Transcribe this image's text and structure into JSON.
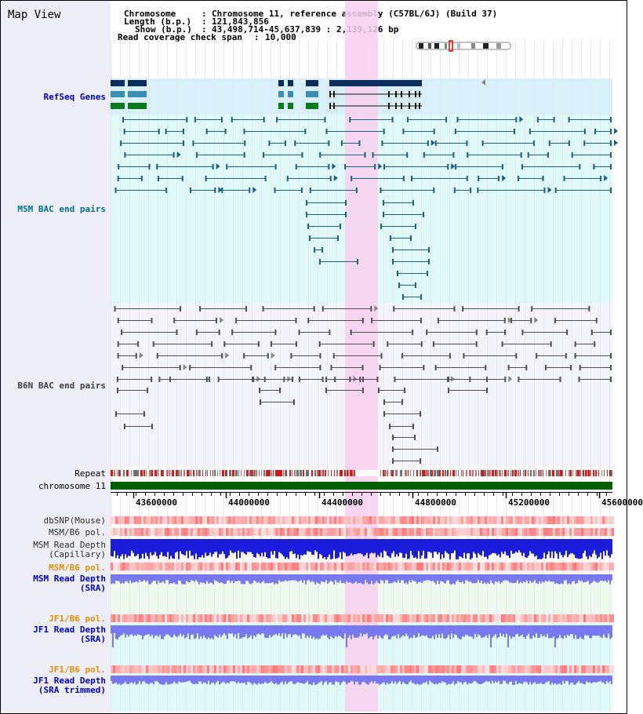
{
  "title": "Map View",
  "info": {
    "chromosome_key": "Chromosome",
    "chromosome_val": "Chromosome 11, reference assembly (C57BL/6J) (Build 37)",
    "length_key": "Length (b.p.)",
    "length_val": "121,843,856",
    "show_key": "Show (b.p.)",
    "show_val": "43,498,714-45,637,839 : 2,139,126 bp",
    "coverage_key": "Read coverage check span",
    "coverage_val": "10,000"
  },
  "tracks": {
    "refseq": "RefSeq Genes",
    "msm_bac": "MSM BAC end pairs",
    "b6n_bac": "B6N BAC end pairs",
    "repeat": "Repeat",
    "chromosome": "chromosome 11",
    "dbsnp": "dbSNP(Mouse)",
    "msm_b6_pol": "MSM/B6 pol.",
    "msm_read_depth_cap_1": "MSM Read Depth",
    "msm_read_depth_cap_2": "(Capillary)",
    "msm_b6_pol_2": "MSM/B6 pol.",
    "msm_read_depth_sra_1": "MSM Read Depth",
    "msm_read_depth_sra_2": "(SRA)",
    "jf1_b6_pol": "JF1/B6 pol.",
    "jf1_read_depth_sra_1": "JF1 Read Depth",
    "jf1_read_depth_sra_2": "(SRA)",
    "jf1_b6_pol_2": "JF1/B6 pol.",
    "jf1_read_depth_trim_1": "JF1 Read Depth",
    "jf1_read_depth_trim_2": "(SRA trimmed)"
  },
  "axis": {
    "ticks": [
      "43600000",
      "44000000",
      "44400000",
      "44800000",
      "45200000",
      "45600000"
    ]
  },
  "colors": {
    "highlight": "#f8d0f0",
    "refseq_bg": "#d8f0fa",
    "msm_bg": "#e0fafa",
    "b6n_bg": "#f4f4fc",
    "chromosome_bar": "#006000",
    "refseq_dark": "#0b2d5e",
    "refseq_mid": "#3a8fb0",
    "refseq_green": "#0a7a1a",
    "msm_line": "#1a6080",
    "b6n_line": "#505050",
    "depth_blue": "#1c1cdc",
    "depth_light": "#7878f0",
    "pol_red": "#f04040",
    "label_blue": "#0000c0",
    "label_orange": "#e09000",
    "label_teal": "#00708a"
  }
}
